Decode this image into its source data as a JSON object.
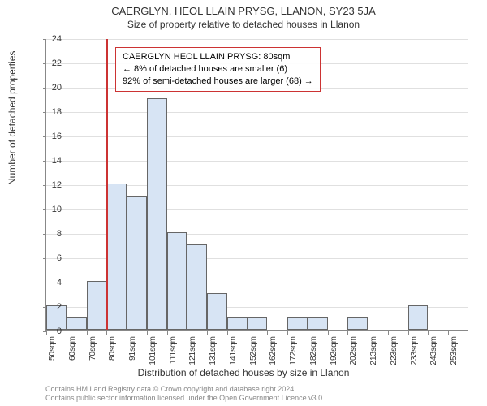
{
  "title": "CAERGLYN, HEOL LLAIN PRYSG, LLANON, SY23 5JA",
  "subtitle": "Size of property relative to detached houses in Llanon",
  "ylabel": "Number of detached properties",
  "xlabel": "Distribution of detached houses by size in Llanon",
  "footer_line1": "Contains HM Land Registry data © Crown copyright and database right 2024.",
  "footer_line2": "Contains public sector information licensed under the Open Government Licence v3.0.",
  "chart": {
    "type": "histogram",
    "ylim": [
      0,
      24
    ],
    "ytick_step": 2,
    "bar_fill": "#d7e4f4",
    "bar_stroke": "#666666",
    "grid_color": "#e0e0e0",
    "background": "#ffffff",
    "marker_value": 80,
    "marker_color": "#cc3333",
    "x_labels": [
      "50sqm",
      "60sqm",
      "70sqm",
      "80sqm",
      "91sqm",
      "101sqm",
      "111sqm",
      "121sqm",
      "131sqm",
      "141sqm",
      "152sqm",
      "162sqm",
      "172sqm",
      "182sqm",
      "192sqm",
      "202sqm",
      "213sqm",
      "223sqm",
      "233sqm",
      "243sqm",
      "253sqm"
    ],
    "values": [
      2,
      1,
      4,
      12,
      11,
      19,
      8,
      7,
      3,
      1,
      1,
      0,
      1,
      1,
      0,
      1,
      0,
      0,
      2,
      0
    ],
    "bar_width_ratio": 1.0
  },
  "infobox": {
    "border_color": "#cc3333",
    "line1": "CAERGLYN HEOL LLAIN PRYSG: 80sqm",
    "line2": "← 8% of detached houses are smaller (6)",
    "line3": "92% of semi-detached houses are larger (68) →"
  }
}
